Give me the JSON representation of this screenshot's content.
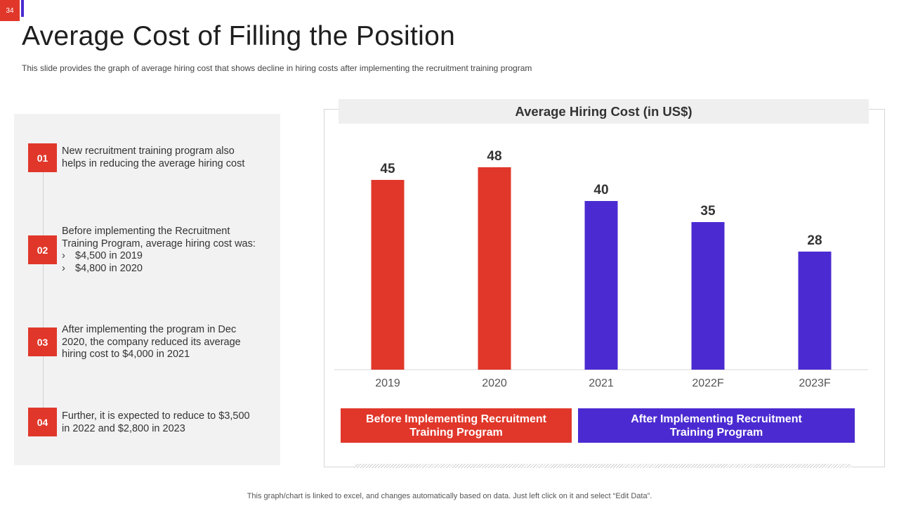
{
  "slide_number": "34",
  "title": "Average Cost of Filling the Position",
  "subtitle": "This slide provides  the graph of average  hiring cost that shows decline in hiring costs after implementing  the recruitment  training program",
  "steps": [
    {
      "num": "01",
      "lines": [
        "New recruitment training program also",
        "helps in reducing the average hiring cost"
      ]
    },
    {
      "num": "02",
      "lines": [
        "Before implementing the Recruitment",
        "Training Program, average hiring cost was:"
      ],
      "bullets": [
        "$4,500 in 2019",
        "$4,800 in 2020"
      ],
      "bullet_mark": "›"
    },
    {
      "num": "03",
      "lines": [
        "After implementing the program in Dec",
        "2020, the company reduced its average",
        "hiring cost to $4,000 in 2021"
      ]
    },
    {
      "num": "04",
      "lines": [
        "Further, it is expected to reduce to $3,500",
        "in 2022 and $2,800 in 2023"
      ]
    }
  ],
  "chart_data": {
    "type": "bar",
    "title": "Average Hiring Cost (in US$)",
    "categories": [
      "2019",
      "2020",
      "2021",
      "2022F",
      "2023F"
    ],
    "values": [
      45,
      48,
      40,
      35,
      28
    ],
    "groups": [
      "before",
      "before",
      "after",
      "after",
      "after"
    ],
    "ylim": [
      0,
      50
    ],
    "xlabel": "",
    "ylabel": "",
    "grid": false,
    "legend": [
      {
        "key": "before",
        "lines": [
          "Before Implementing Recruitment",
          "Training Program"
        ]
      },
      {
        "key": "after",
        "lines": [
          "After Implementing Recruitment",
          "Training Program"
        ]
      }
    ]
  },
  "colors": {
    "before": "#e0372a",
    "after": "#4b2bd1",
    "badge": "#e0372a",
    "axis": "#d9d9d9",
    "value_label": "#333333",
    "tick_label": "#555555"
  },
  "footer": "This graph/chart is linked to excel,  and changes automatically based on data. Just left click on it and select “Edit Data”."
}
